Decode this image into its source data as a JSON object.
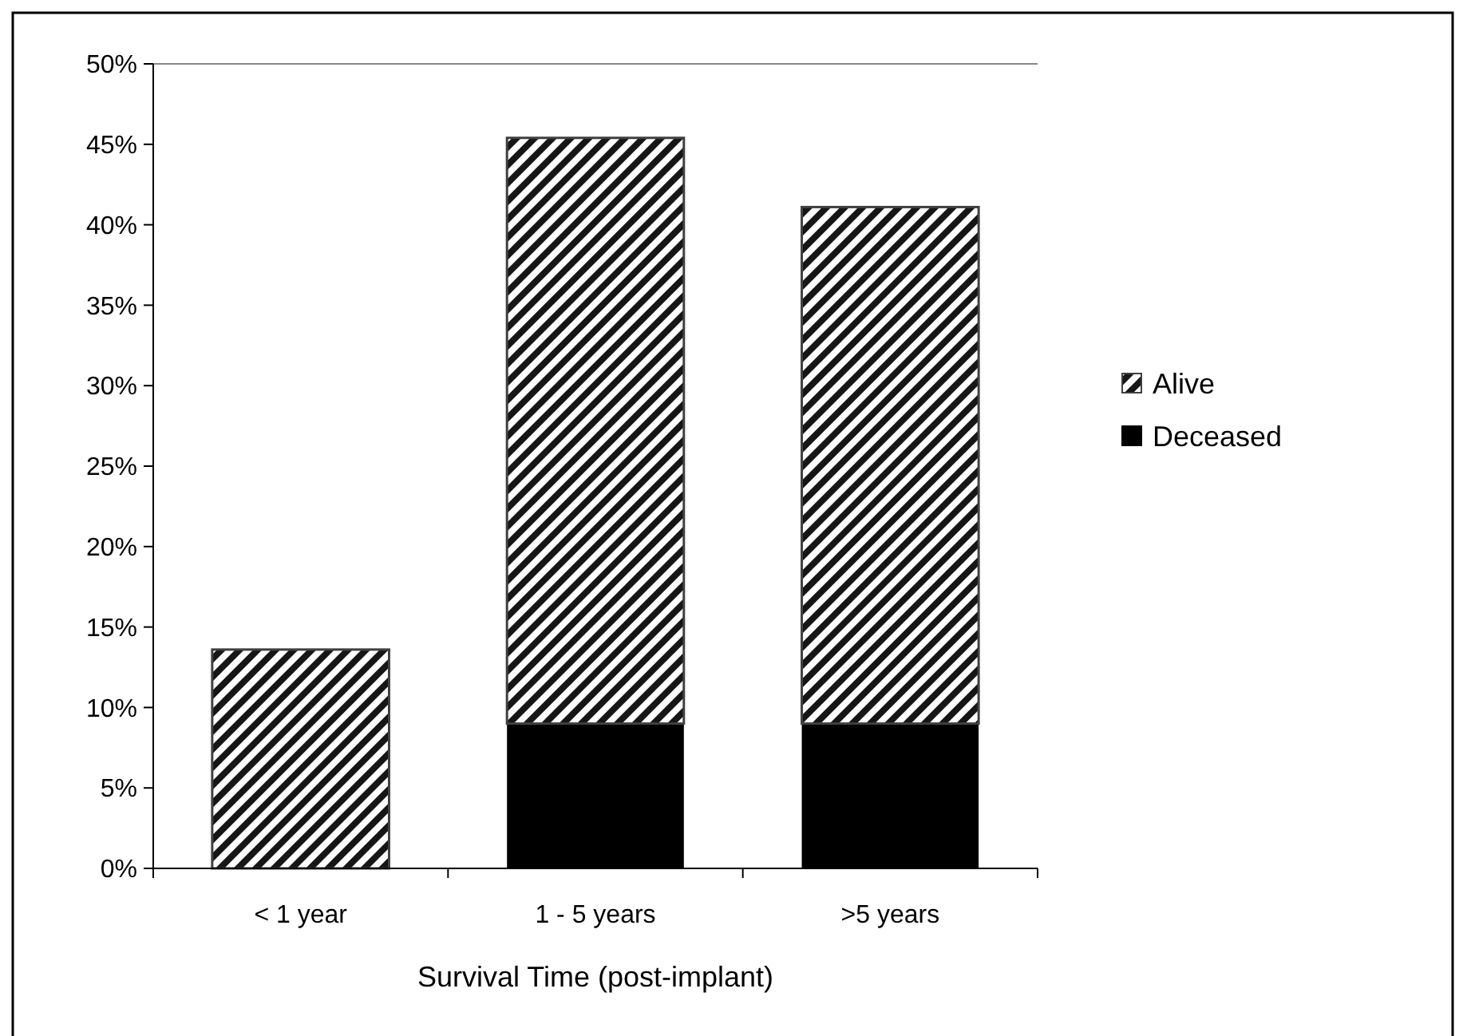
{
  "chart_data": {
    "type": "bar",
    "stacked": true,
    "xlabel": "Survival Time (post-implant)",
    "categories": [
      "< 1 year",
      "1 - 5 years",
      ">5 years"
    ],
    "series": [
      {
        "name": "Deceased",
        "color": "#000000",
        "values": [
          0,
          9.0,
          9.0
        ]
      },
      {
        "name": "Alive",
        "color": "#404040",
        "values": [
          13.6,
          36.4,
          32.1
        ]
      }
    ],
    "ylim": [
      0,
      50
    ],
    "yticks": [
      {
        "value": 0,
        "label": "0%"
      },
      {
        "value": 5,
        "label": "5%"
      },
      {
        "value": 10,
        "label": "10%"
      },
      {
        "value": 15,
        "label": "15%"
      },
      {
        "value": 20,
        "label": "20%"
      },
      {
        "value": 25,
        "label": "25%"
      },
      {
        "value": 30,
        "label": "30%"
      },
      {
        "value": 35,
        "label": "35%"
      },
      {
        "value": 40,
        "label": "40%"
      },
      {
        "value": 45,
        "label": "45%"
      },
      {
        "value": 50,
        "label": "50%"
      }
    ],
    "grid": false,
    "legend": "right"
  }
}
